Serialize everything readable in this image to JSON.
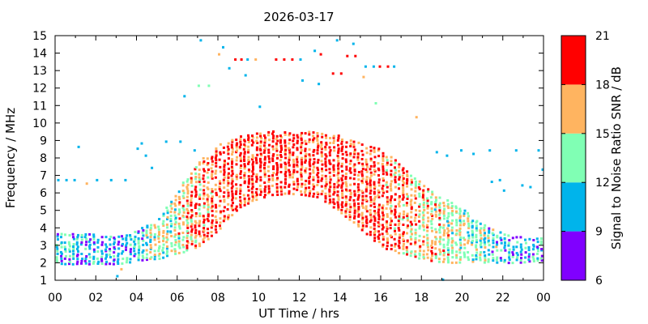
{
  "chart_data": {
    "type": "scatter",
    "title": "2026-03-17",
    "xlabel": "UT Time / hrs",
    "ylabel": "Frequency / MHz",
    "xlim": [
      0,
      24
    ],
    "ylim": [
      1,
      15
    ],
    "x_ticks": [
      "00",
      "02",
      "04",
      "06",
      "08",
      "10",
      "12",
      "14",
      "16",
      "18",
      "20",
      "22",
      "00"
    ],
    "y_ticks": [
      "1",
      "2",
      "3",
      "4",
      "5",
      "6",
      "7",
      "8",
      "9",
      "10",
      "11",
      "12",
      "13",
      "14",
      "15"
    ],
    "colorbar": {
      "label": "Signal to Noise Ratio SNR / dB",
      "range": [
        6,
        21
      ],
      "ticks": [
        "6",
        "9",
        "12",
        "15",
        "18",
        "21"
      ],
      "bands": [
        {
          "min": 6,
          "max": 9,
          "color": "#8000ff"
        },
        {
          "min": 9,
          "max": 12,
          "color": "#00b4eb"
        },
        {
          "min": 12,
          "max": 15,
          "color": "#80ffb4"
        },
        {
          "min": 15,
          "max": 18,
          "color": "#ffb460"
        },
        {
          "min": 18,
          "max": 21,
          "color": "#ff0000"
        }
      ]
    },
    "grid": false,
    "envelope": [
      {
        "t": 0.0,
        "lo": 2.0,
        "hi": 3.8,
        "snr": 10.5
      },
      {
        "t": 1.0,
        "lo": 2.0,
        "hi": 3.7,
        "snr": 10.5
      },
      {
        "t": 2.0,
        "lo": 2.0,
        "hi": 3.7,
        "snr": 10.5
      },
      {
        "t": 3.0,
        "lo": 2.0,
        "hi": 3.6,
        "snr": 10.5
      },
      {
        "t": 4.0,
        "lo": 2.2,
        "hi": 3.9,
        "snr": 11.0
      },
      {
        "t": 5.0,
        "lo": 2.3,
        "hi": 4.6,
        "snr": 13.0
      },
      {
        "t": 6.0,
        "lo": 2.6,
        "hi": 6.3,
        "snr": 15.0
      },
      {
        "t": 7.0,
        "lo": 3.0,
        "hi": 7.8,
        "snr": 17.5
      },
      {
        "t": 8.0,
        "lo": 4.0,
        "hi": 8.8,
        "snr": 18.5
      },
      {
        "t": 9.0,
        "lo": 5.2,
        "hi": 9.3,
        "snr": 19.0
      },
      {
        "t": 10.0,
        "lo": 5.8,
        "hi": 9.6,
        "snr": 19.5
      },
      {
        "t": 11.0,
        "lo": 6.0,
        "hi": 9.6,
        "snr": 19.5
      },
      {
        "t": 12.0,
        "lo": 6.0,
        "hi": 9.6,
        "snr": 19.5
      },
      {
        "t": 13.0,
        "lo": 5.8,
        "hi": 9.5,
        "snr": 19.5
      },
      {
        "t": 14.0,
        "lo": 5.0,
        "hi": 9.3,
        "snr": 19.5
      },
      {
        "t": 15.0,
        "lo": 4.0,
        "hi": 9.0,
        "snr": 19.0
      },
      {
        "t": 16.0,
        "lo": 3.0,
        "hi": 8.6,
        "snr": 18.5
      },
      {
        "t": 17.0,
        "lo": 2.6,
        "hi": 7.6,
        "snr": 17.5
      },
      {
        "t": 18.0,
        "lo": 2.3,
        "hi": 6.6,
        "snr": 16.0
      },
      {
        "t": 19.0,
        "lo": 2.1,
        "hi": 5.8,
        "snr": 15.0
      },
      {
        "t": 20.0,
        "lo": 2.1,
        "hi": 5.1,
        "snr": 14.0
      },
      {
        "t": 21.0,
        "lo": 2.1,
        "hi": 4.3,
        "snr": 12.5
      },
      {
        "t": 22.0,
        "lo": 2.1,
        "hi": 3.7,
        "snr": 11.0
      },
      {
        "t": 23.0,
        "lo": 2.1,
        "hi": 3.5,
        "snr": 10.5
      },
      {
        "t": 24.0,
        "lo": 2.2,
        "hi": 3.5,
        "snr": 10.5
      }
    ],
    "outliers": [
      {
        "t": 0.1,
        "f": 6.8,
        "snr": 10
      },
      {
        "t": 0.5,
        "f": 6.8,
        "snr": 10
      },
      {
        "t": 0.9,
        "f": 6.8,
        "snr": 10
      },
      {
        "t": 1.1,
        "f": 8.7,
        "snr": 10
      },
      {
        "t": 1.5,
        "f": 6.6,
        "snr": 16
      },
      {
        "t": 2.0,
        "f": 6.8,
        "snr": 10
      },
      {
        "t": 2.7,
        "f": 6.8,
        "snr": 10
      },
      {
        "t": 3.4,
        "f": 6.8,
        "snr": 10
      },
      {
        "t": 4.0,
        "f": 8.6,
        "snr": 10
      },
      {
        "t": 4.2,
        "f": 8.9,
        "snr": 10
      },
      {
        "t": 4.4,
        "f": 8.2,
        "snr": 10
      },
      {
        "t": 4.7,
        "f": 7.5,
        "snr": 10
      },
      {
        "t": 5.4,
        "f": 9.0,
        "snr": 10
      },
      {
        "t": 6.1,
        "f": 9.0,
        "snr": 10
      },
      {
        "t": 6.3,
        "f": 11.6,
        "snr": 10
      },
      {
        "t": 6.8,
        "f": 8.5,
        "snr": 10
      },
      {
        "t": 7.1,
        "f": 14.8,
        "snr": 10
      },
      {
        "t": 7.0,
        "f": 12.2,
        "snr": 14
      },
      {
        "t": 7.5,
        "f": 12.2,
        "snr": 14
      },
      {
        "t": 8.0,
        "f": 14.0,
        "snr": 15
      },
      {
        "t": 8.2,
        "f": 14.4,
        "snr": 10
      },
      {
        "t": 8.5,
        "f": 13.2,
        "snr": 10
      },
      {
        "t": 8.8,
        "f": 13.7,
        "snr": 20
      },
      {
        "t": 9.1,
        "f": 13.7,
        "snr": 20
      },
      {
        "t": 9.4,
        "f": 13.7,
        "snr": 10
      },
      {
        "t": 9.8,
        "f": 13.7,
        "snr": 17
      },
      {
        "t": 9.3,
        "f": 12.8,
        "snr": 10
      },
      {
        "t": 10.0,
        "f": 11.0,
        "snr": 10
      },
      {
        "t": 10.8,
        "f": 13.7,
        "snr": 20
      },
      {
        "t": 11.2,
        "f": 13.7,
        "snr": 20
      },
      {
        "t": 11.6,
        "f": 13.7,
        "snr": 20
      },
      {
        "t": 12.0,
        "f": 13.7,
        "snr": 10
      },
      {
        "t": 12.1,
        "f": 12.5,
        "snr": 10
      },
      {
        "t": 12.7,
        "f": 14.2,
        "snr": 10
      },
      {
        "t": 13.0,
        "f": 14.0,
        "snr": 20
      },
      {
        "t": 12.9,
        "f": 12.3,
        "snr": 10
      },
      {
        "t": 13.6,
        "f": 12.9,
        "snr": 20
      },
      {
        "t": 14.0,
        "f": 12.9,
        "snr": 20
      },
      {
        "t": 13.8,
        "f": 14.8,
        "snr": 10
      },
      {
        "t": 14.3,
        "f": 13.9,
        "snr": 20
      },
      {
        "t": 14.7,
        "f": 13.9,
        "snr": 20
      },
      {
        "t": 14.6,
        "f": 14.6,
        "snr": 10
      },
      {
        "t": 15.1,
        "f": 12.7,
        "snr": 16
      },
      {
        "t": 15.2,
        "f": 13.3,
        "snr": 10
      },
      {
        "t": 15.6,
        "f": 13.3,
        "snr": 10
      },
      {
        "t": 15.9,
        "f": 13.3,
        "snr": 20
      },
      {
        "t": 16.3,
        "f": 13.3,
        "snr": 20
      },
      {
        "t": 16.6,
        "f": 13.3,
        "snr": 10
      },
      {
        "t": 15.7,
        "f": 11.2,
        "snr": 13
      },
      {
        "t": 17.7,
        "f": 10.4,
        "snr": 16
      },
      {
        "t": 18.7,
        "f": 8.4,
        "snr": 10
      },
      {
        "t": 19.2,
        "f": 8.2,
        "snr": 10
      },
      {
        "t": 19.9,
        "f": 8.5,
        "snr": 10
      },
      {
        "t": 20.5,
        "f": 8.3,
        "snr": 10
      },
      {
        "t": 21.3,
        "f": 8.5,
        "snr": 10
      },
      {
        "t": 21.4,
        "f": 6.7,
        "snr": 10
      },
      {
        "t": 21.8,
        "f": 6.8,
        "snr": 10
      },
      {
        "t": 22.0,
        "f": 6.2,
        "snr": 10
      },
      {
        "t": 22.6,
        "f": 8.5,
        "snr": 10
      },
      {
        "t": 22.9,
        "f": 6.5,
        "snr": 10
      },
      {
        "t": 23.7,
        "f": 8.5,
        "snr": 10
      },
      {
        "t": 23.9,
        "f": 7.4,
        "snr": 10
      },
      {
        "t": 23.3,
        "f": 6.4,
        "snr": 10
      },
      {
        "t": 3.0,
        "f": 1.3,
        "snr": 10
      },
      {
        "t": 3.2,
        "f": 1.7,
        "snr": 16
      },
      {
        "t": 19.0,
        "f": 1.1,
        "snr": 10
      }
    ]
  }
}
